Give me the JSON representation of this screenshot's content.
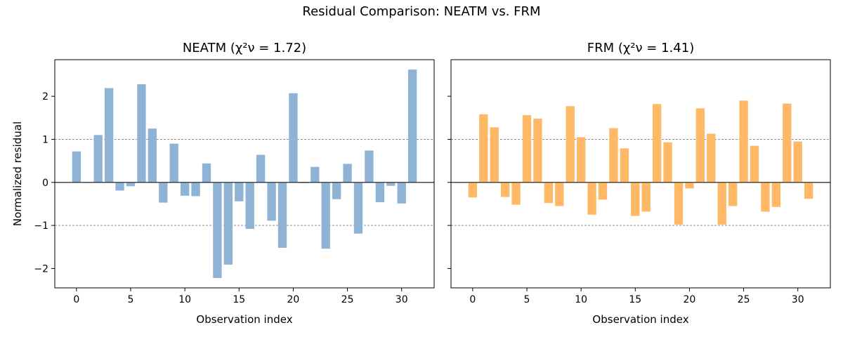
{
  "figure": {
    "suptitle": "Residual Comparison: NEATM vs. FRM"
  },
  "chart_data": [
    {
      "type": "bar",
      "panel": "left",
      "title_prefix": "NEATM (",
      "title_stat": "χ²ν = 1.72",
      "title_suffix": ")",
      "xlabel": "Observation index",
      "ylabel": "Normalized residual",
      "xlim": [
        -2,
        33
      ],
      "ylim": [
        -2.45,
        2.85
      ],
      "xticks": [
        0,
        5,
        10,
        15,
        20,
        25,
        30
      ],
      "yticks": [
        -2,
        -1,
        0,
        1,
        2
      ],
      "ytick_labels": [
        "−2",
        "−1",
        "0",
        "1",
        "2"
      ],
      "reference_lines": [
        {
          "y": 1,
          "style": "dashed"
        },
        {
          "y": -1,
          "style": "dashed"
        },
        {
          "y": 0,
          "style": "solid"
        }
      ],
      "color": "#8fb3d4",
      "x": [
        0,
        1,
        2,
        3,
        4,
        5,
        6,
        7,
        8,
        9,
        10,
        11,
        12,
        13,
        14,
        15,
        16,
        17,
        18,
        19,
        20,
        21,
        22,
        23,
        24,
        25,
        26,
        27,
        28,
        29,
        30,
        31
      ],
      "values": [
        0.72,
        0.01,
        1.1,
        2.19,
        -0.19,
        -0.09,
        2.28,
        1.25,
        -0.47,
        0.9,
        -0.31,
        -0.32,
        0.44,
        -2.22,
        -1.91,
        -0.44,
        -1.08,
        0.64,
        -0.89,
        -1.52,
        2.07,
        -0.02,
        0.36,
        -1.54,
        -0.39,
        0.43,
        -1.19,
        0.74,
        -0.46,
        -0.08,
        -0.49,
        2.62
      ]
    },
    {
      "type": "bar",
      "panel": "right",
      "title_prefix": "FRM (",
      "title_stat": "χ²ν = 1.41",
      "title_suffix": ")",
      "xlabel": "Observation index",
      "ylabel": "",
      "xlim": [
        -2,
        33
      ],
      "ylim": [
        -2.45,
        2.85
      ],
      "xticks": [
        0,
        5,
        10,
        15,
        20,
        25,
        30
      ],
      "yticks": [
        -2,
        -1,
        0,
        1,
        2
      ],
      "ytick_labels": [],
      "reference_lines": [
        {
          "y": 1,
          "style": "dashed"
        },
        {
          "y": -1,
          "style": "dashed"
        },
        {
          "y": 0,
          "style": "solid"
        }
      ],
      "color": "#ffb966",
      "x": [
        0,
        1,
        2,
        3,
        4,
        5,
        6,
        7,
        8,
        9,
        10,
        11,
        12,
        13,
        14,
        15,
        16,
        17,
        18,
        19,
        20,
        21,
        22,
        23,
        24,
        25,
        26,
        27,
        28,
        29,
        30,
        31
      ],
      "values": [
        -0.35,
        1.58,
        1.28,
        -0.34,
        -0.52,
        1.56,
        1.48,
        -0.48,
        -0.55,
        1.77,
        1.05,
        -0.75,
        -0.4,
        1.26,
        0.79,
        -0.78,
        -0.68,
        1.82,
        0.93,
        -0.98,
        -0.14,
        1.72,
        1.13,
        -0.98,
        -0.55,
        1.9,
        0.85,
        -0.68,
        -0.57,
        1.83,
        0.95,
        -0.38
      ]
    }
  ]
}
